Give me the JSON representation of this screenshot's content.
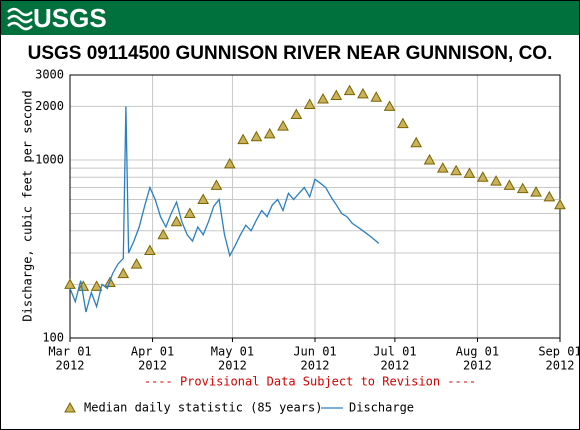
{
  "header": {
    "logo": "USGS"
  },
  "chart_data": {
    "type": "line",
    "title": "USGS 09114500 GUNNISON RIVER NEAR GUNNISON, CO.",
    "ylabel": "Discharge, cubic feet per second",
    "note": "---- Provisional Data Subject to Revision ----",
    "log_y": true,
    "grid": true,
    "ylim": [
      100,
      3000
    ],
    "yticks": [
      100,
      1000,
      2000,
      3000
    ],
    "yminor": [
      200,
      300,
      400,
      500,
      600,
      700,
      800,
      900
    ],
    "xlim": [
      "2012-03-01",
      "2012-09-01"
    ],
    "xticks": [
      {
        "value": "2012-03-01",
        "label": [
          "Mar 01",
          "2012"
        ]
      },
      {
        "value": "2012-04-01",
        "label": [
          "Apr 01",
          "2012"
        ]
      },
      {
        "value": "2012-05-01",
        "label": [
          "May 01",
          "2012"
        ]
      },
      {
        "value": "2012-06-01",
        "label": [
          "Jun 01",
          "2012"
        ]
      },
      {
        "value": "2012-07-01",
        "label": [
          "Jul 01",
          "2012"
        ]
      },
      {
        "value": "2012-08-01",
        "label": [
          "Aug 01",
          "2012"
        ]
      },
      {
        "value": "2012-09-01",
        "label": [
          "Sep 01",
          "2012"
        ]
      }
    ],
    "series": [
      {
        "name": "Median daily statistic (85 years)",
        "marker": "triangle",
        "color": "#7a6400",
        "fill": "#c9b25a",
        "x": [
          "2012-03-01",
          "2012-03-06",
          "2012-03-11",
          "2012-03-16",
          "2012-03-21",
          "2012-03-26",
          "2012-03-31",
          "2012-04-05",
          "2012-04-10",
          "2012-04-15",
          "2012-04-20",
          "2012-04-25",
          "2012-04-30",
          "2012-05-05",
          "2012-05-10",
          "2012-05-15",
          "2012-05-20",
          "2012-05-25",
          "2012-05-30",
          "2012-06-04",
          "2012-06-09",
          "2012-06-14",
          "2012-06-19",
          "2012-06-24",
          "2012-06-29",
          "2012-07-04",
          "2012-07-09",
          "2012-07-14",
          "2012-07-19",
          "2012-07-24",
          "2012-07-29",
          "2012-08-03",
          "2012-08-08",
          "2012-08-13",
          "2012-08-18",
          "2012-08-23",
          "2012-08-28",
          "2012-09-01"
        ],
        "values": [
          200,
          195,
          195,
          205,
          230,
          260,
          310,
          380,
          450,
          500,
          600,
          720,
          950,
          1300,
          1350,
          1400,
          1550,
          1800,
          2050,
          2200,
          2300,
          2450,
          2350,
          2250,
          2000,
          1600,
          1250,
          1000,
          900,
          870,
          840,
          800,
          760,
          720,
          690,
          660,
          620,
          560
        ]
      },
      {
        "name": "Discharge",
        "marker": "line",
        "color": "#2a7fc0",
        "x": [
          "2012-03-01",
          "2012-03-03",
          "2012-03-05",
          "2012-03-07",
          "2012-03-09",
          "2012-03-11",
          "2012-03-13",
          "2012-03-15",
          "2012-03-17",
          "2012-03-19",
          "2012-03-21",
          "2012-03-22",
          "2012-03-23",
          "2012-03-25",
          "2012-03-27",
          "2012-03-29",
          "2012-03-31",
          "2012-04-02",
          "2012-04-04",
          "2012-04-06",
          "2012-04-08",
          "2012-04-10",
          "2012-04-12",
          "2012-04-14",
          "2012-04-16",
          "2012-04-18",
          "2012-04-20",
          "2012-04-22",
          "2012-04-24",
          "2012-04-26",
          "2012-04-28",
          "2012-04-30",
          "2012-05-02",
          "2012-05-04",
          "2012-05-06",
          "2012-05-08",
          "2012-05-10",
          "2012-05-12",
          "2012-05-14",
          "2012-05-16",
          "2012-05-18",
          "2012-05-20",
          "2012-05-22",
          "2012-05-24",
          "2012-05-26",
          "2012-05-28",
          "2012-05-30",
          "2012-06-01",
          "2012-06-03",
          "2012-06-05",
          "2012-06-07",
          "2012-06-09",
          "2012-06-11",
          "2012-06-13",
          "2012-06-15",
          "2012-06-17",
          "2012-06-19",
          "2012-06-21",
          "2012-06-23",
          "2012-06-25"
        ],
        "values": [
          190,
          160,
          210,
          140,
          180,
          150,
          200,
          190,
          230,
          260,
          280,
          2000,
          300,
          350,
          420,
          550,
          700,
          600,
          480,
          420,
          500,
          580,
          450,
          380,
          350,
          420,
          380,
          450,
          550,
          600,
          380,
          290,
          330,
          380,
          430,
          400,
          460,
          520,
          480,
          560,
          600,
          520,
          650,
          600,
          650,
          700,
          620,
          780,
          740,
          700,
          620,
          560,
          500,
          480,
          440,
          420,
          400,
          380,
          360,
          340
        ]
      }
    ]
  }
}
